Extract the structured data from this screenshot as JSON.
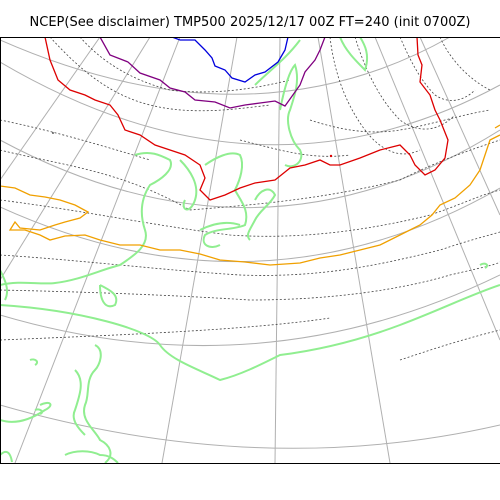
{
  "title": "NCEP(See disclaimer) TMP500 2025/12/17 00Z FT=240 (init 0700Z)",
  "map": {
    "colors": {
      "graticule": "#b0b0b0",
      "isotherm": "#444444",
      "coastline": "#90ee90",
      "contour_minus_40": "#0000dd",
      "contour_minus_36": "#800080",
      "contour_minus_30": "#dd0000",
      "contour_minus_15": "#f0a000",
      "frame": "#000000"
    }
  }
}
